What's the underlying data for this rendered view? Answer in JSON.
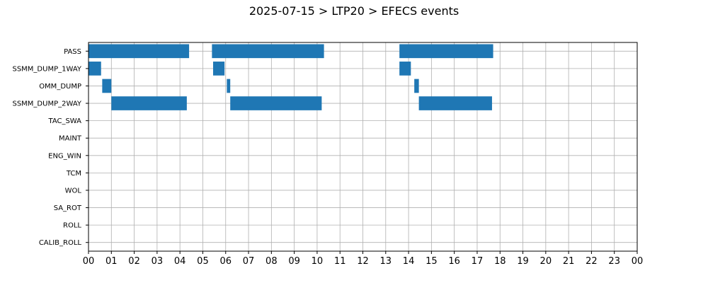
{
  "chart_data": {
    "type": "bar",
    "orientation": "horizontal",
    "title": "2025-07-15 > LTP20 > EFECS events",
    "xlabel": "",
    "ylabel": "",
    "xlim": [
      0,
      24
    ],
    "x_tick_labels": [
      "00",
      "01",
      "02",
      "03",
      "04",
      "05",
      "06",
      "07",
      "08",
      "09",
      "10",
      "11",
      "12",
      "13",
      "14",
      "15",
      "16",
      "17",
      "18",
      "19",
      "20",
      "21",
      "22",
      "23",
      "00"
    ],
    "categories": [
      "PASS",
      "SSMM_DUMP_1WAY",
      "OMM_DUMP",
      "SSMM_DUMP_2WAY",
      "TAC_SWA",
      "MAINT",
      "ENG_WIN",
      "TCM",
      "WOL",
      "SA_ROT",
      "ROLL",
      "CALIB_ROLL"
    ],
    "grid": true,
    "bar_color": "#1f77b4",
    "events": [
      {
        "category": "PASS",
        "start": 0.0,
        "end": 4.4
      },
      {
        "category": "PASS",
        "start": 5.4,
        "end": 10.3
      },
      {
        "category": "PASS",
        "start": 13.6,
        "end": 17.7
      },
      {
        "category": "SSMM_DUMP_1WAY",
        "start": 0.0,
        "end": 0.55
      },
      {
        "category": "SSMM_DUMP_1WAY",
        "start": 5.45,
        "end": 5.95
      },
      {
        "category": "SSMM_DUMP_1WAY",
        "start": 13.6,
        "end": 14.1
      },
      {
        "category": "OMM_DUMP",
        "start": 0.6,
        "end": 1.0
      },
      {
        "category": "OMM_DUMP",
        "start": 6.05,
        "end": 6.2
      },
      {
        "category": "OMM_DUMP",
        "start": 14.25,
        "end": 14.45
      },
      {
        "category": "SSMM_DUMP_2WAY",
        "start": 1.0,
        "end": 4.3
      },
      {
        "category": "SSMM_DUMP_2WAY",
        "start": 6.2,
        "end": 10.2
      },
      {
        "category": "SSMM_DUMP_2WAY",
        "start": 14.45,
        "end": 17.65
      }
    ]
  }
}
